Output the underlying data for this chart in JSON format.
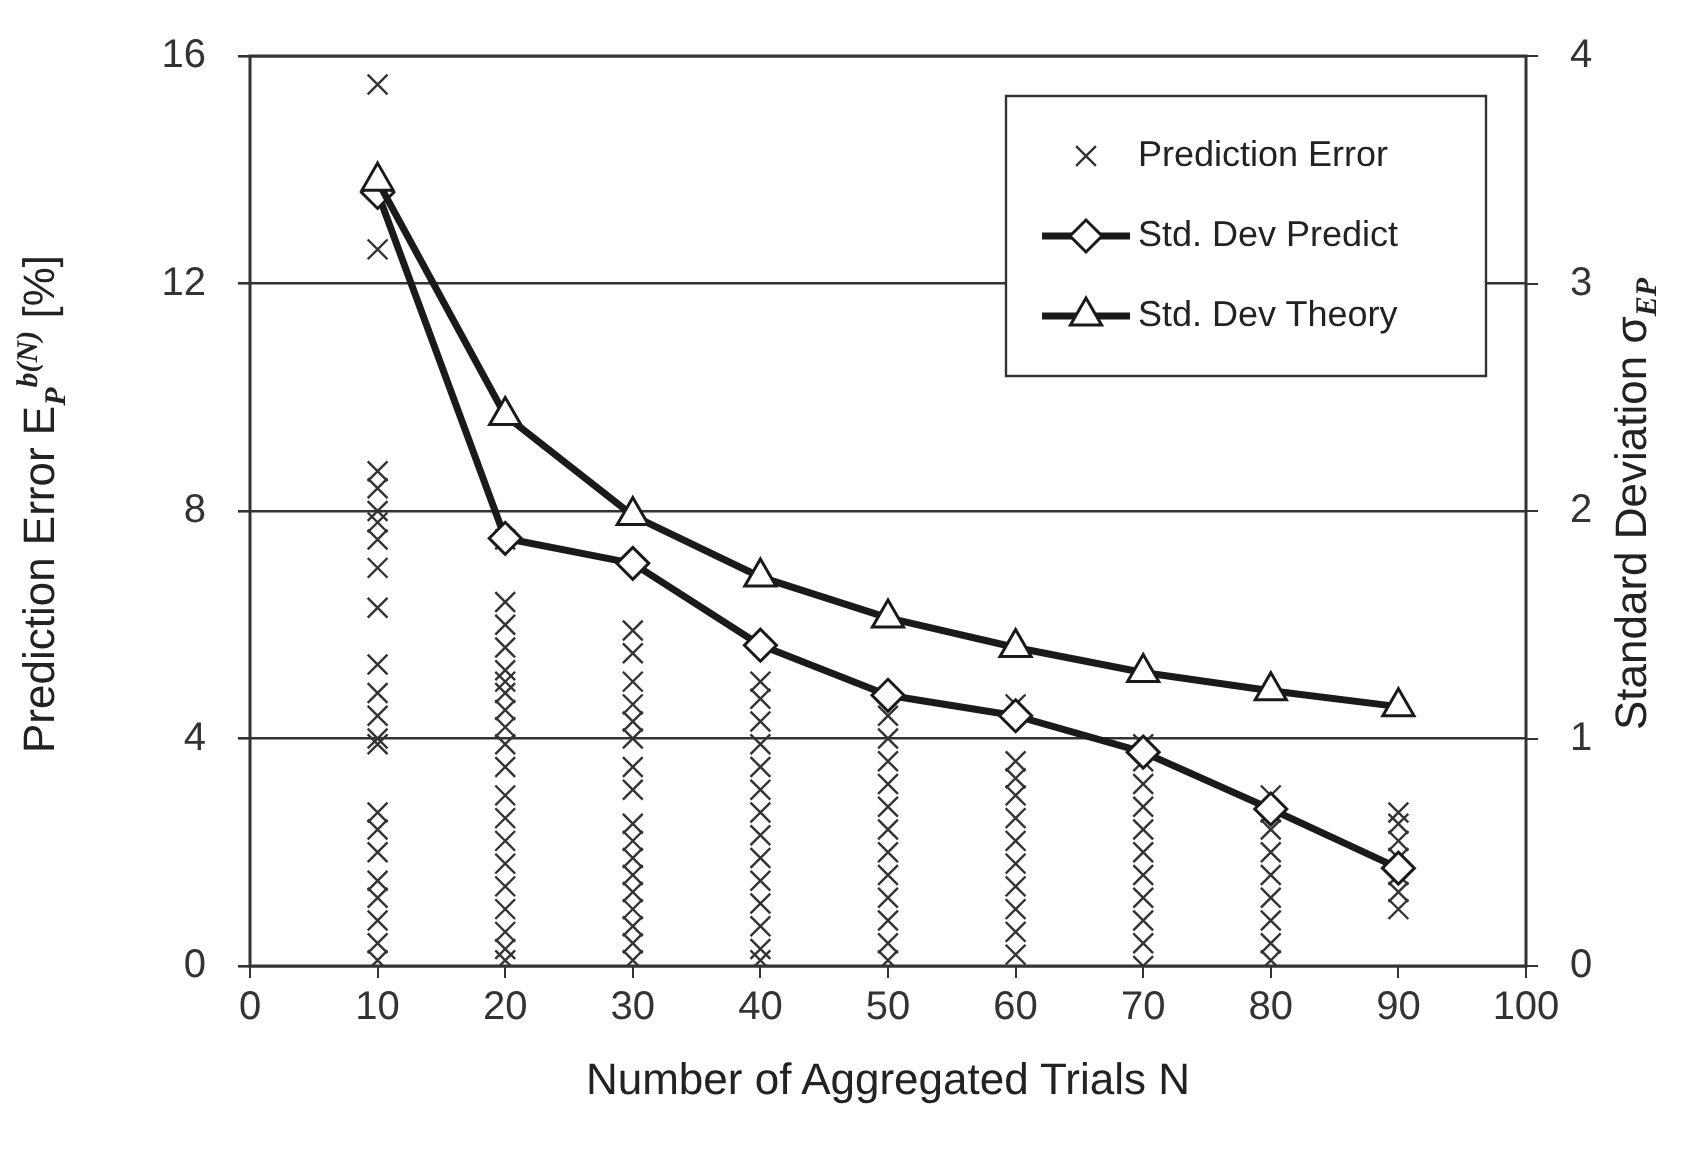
{
  "chart_data": {
    "type": "scatter",
    "xlabel": "Number of Aggregated Trials N",
    "ylabel": "Prediction Error E$_{P}$$^{b(N)}$ [%]",
    "y2label": "Standard Deviation σ$_{EP}$",
    "xlim": [
      0,
      100
    ],
    "xticks": [
      0,
      10,
      20,
      30,
      40,
      50,
      60,
      70,
      80,
      90,
      100
    ],
    "ylim": [
      0,
      16
    ],
    "yticks": [
      0,
      4,
      8,
      12,
      16
    ],
    "y2lim": [
      0,
      4
    ],
    "y2ticks": [
      0,
      1,
      2,
      3,
      4
    ],
    "grid": "y",
    "legend": "top right",
    "series": [
      {
        "name": "Prediction Error",
        "marker": "cross",
        "color": "#333333",
        "x": [
          10,
          10,
          10,
          10,
          10,
          10,
          10,
          10,
          10,
          10,
          10,
          10,
          10,
          10,
          10,
          10,
          10,
          10,
          10,
          10,
          10,
          10,
          20,
          20,
          20,
          20,
          20,
          20,
          20,
          20,
          20,
          20,
          20,
          20,
          20,
          20,
          20,
          20,
          20,
          20,
          20,
          20,
          30,
          30,
          30,
          30,
          30,
          30,
          30,
          30,
          30,
          30,
          30,
          30,
          30,
          30,
          30,
          30,
          30,
          40,
          40,
          40,
          40,
          40,
          40,
          40,
          40,
          40,
          40,
          40,
          40,
          40,
          40,
          50,
          50,
          50,
          50,
          50,
          50,
          50,
          50,
          50,
          50,
          50,
          50,
          60,
          60,
          60,
          60,
          60,
          60,
          60,
          60,
          60,
          60,
          60,
          70,
          70,
          70,
          70,
          70,
          70,
          70,
          70,
          70,
          70,
          70,
          80,
          80,
          80,
          80,
          80,
          80,
          80,
          80,
          80,
          90,
          90,
          90,
          90,
          90,
          90,
          90
        ],
        "values": [
          15.5,
          12.6,
          8.7,
          8.4,
          8.0,
          7.8,
          7.5,
          7.0,
          6.3,
          5.3,
          4.8,
          4.4,
          4.0,
          3.9,
          2.7,
          2.4,
          2.0,
          1.5,
          1.2,
          0.8,
          0.4,
          0.1,
          7.5,
          6.4,
          6.0,
          5.6,
          5.2,
          5.0,
          4.8,
          4.5,
          4.2,
          3.9,
          3.5,
          3.0,
          2.6,
          2.2,
          1.8,
          1.4,
          1.0,
          0.6,
          0.3,
          0.1,
          5.9,
          5.5,
          5.0,
          4.6,
          4.3,
          4.0,
          3.5,
          3.1,
          2.5,
          2.2,
          1.9,
          1.6,
          1.3,
          1.0,
          0.7,
          0.4,
          0.1,
          5.0,
          4.7,
          4.3,
          3.9,
          3.5,
          3.1,
          2.7,
          2.3,
          1.9,
          1.5,
          1.1,
          0.7,
          0.3,
          0.1,
          4.4,
          4.0,
          3.6,
          3.2,
          2.8,
          2.4,
          2.0,
          1.6,
          1.2,
          0.8,
          0.4,
          0.1,
          4.6,
          3.6,
          3.3,
          3.0,
          2.6,
          2.2,
          1.8,
          1.4,
          1.0,
          0.6,
          0.2,
          3.9,
          3.6,
          3.2,
          2.8,
          2.4,
          2.0,
          1.6,
          1.2,
          0.8,
          0.4,
          0.0,
          3.0,
          2.7,
          2.4,
          2.0,
          1.6,
          1.2,
          0.8,
          0.4,
          0.1,
          2.7,
          2.5,
          2.2,
          1.9,
          1.6,
          1.3,
          1.0
        ]
      },
      {
        "name": "Std. Dev Predict",
        "type": "line",
        "axis": "y2",
        "marker": "diamond",
        "color": "#1a1a1a",
        "x": [
          10,
          20,
          30,
          40,
          50,
          60,
          70,
          80,
          90
        ],
        "values": [
          3.4,
          1.88,
          1.77,
          1.41,
          1.19,
          1.1,
          0.94,
          0.69,
          0.43
        ]
      },
      {
        "name": "Std. Dev Theory",
        "type": "line",
        "axis": "y2",
        "marker": "triangle",
        "color": "#1a1a1a",
        "x": [
          10,
          20,
          30,
          40,
          50,
          60,
          70,
          80,
          90
        ],
        "values": [
          3.45,
          2.42,
          1.98,
          1.71,
          1.53,
          1.4,
          1.29,
          1.21,
          1.14
        ]
      }
    ]
  }
}
